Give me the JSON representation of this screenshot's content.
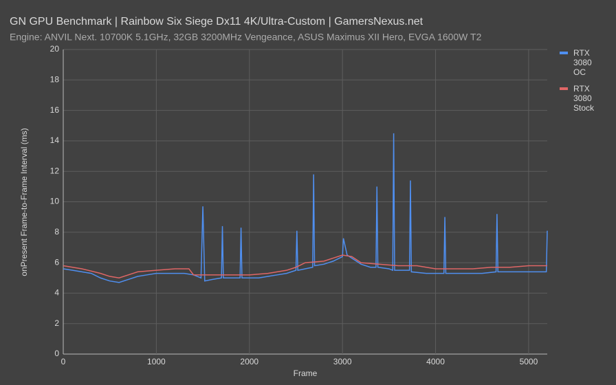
{
  "chart_data": {
    "type": "line",
    "title": "GN GPU Benchmark | Rainbow Six Siege Dx11 4K/Ultra-Custom | GamersNexus.net",
    "subtitle": "Engine: ANVIL Next. 10700K 5.1GHz, 32GB 3200MHz Vengeance, ASUS Maximus XII Hero, EVGA 1600W T2",
    "x_label": "Frame",
    "y_label": "onPresent Frame-to-Frame Interval (ms)",
    "xlim": [
      0,
      5200
    ],
    "xticks": [
      0,
      1000,
      2000,
      3000,
      4000,
      5000
    ],
    "ylim": [
      0,
      20
    ],
    "yticks": [
      0,
      2,
      4,
      6,
      8,
      10,
      12,
      14,
      16,
      18,
      20
    ],
    "grid": true,
    "legend": "right",
    "series": [
      {
        "name": "RTX 3080 OC",
        "color": "#4f8ff0",
        "x": [
          0,
          100,
          200,
          300,
          400,
          500,
          600,
          700,
          800,
          900,
          1000,
          1100,
          1200,
          1300,
          1400,
          1480,
          1500,
          1520,
          1600,
          1700,
          1710,
          1720,
          1800,
          1900,
          1910,
          1920,
          2000,
          2100,
          2200,
          2300,
          2400,
          2500,
          2510,
          2520,
          2600,
          2680,
          2690,
          2700,
          2800,
          2900,
          3000,
          3010,
          3050,
          3100,
          3200,
          3300,
          3360,
          3370,
          3380,
          3500,
          3540,
          3550,
          3560,
          3700,
          3720,
          3730,
          3740,
          3900,
          4000,
          4090,
          4100,
          4110,
          4300,
          4500,
          4650,
          4660,
          4670,
          4800,
          5000,
          5100,
          5190,
          5200
        ],
        "values": [
          5.6,
          5.5,
          5.4,
          5.3,
          5.0,
          4.8,
          4.7,
          4.9,
          5.1,
          5.2,
          5.3,
          5.3,
          5.3,
          5.3,
          5.2,
          5.0,
          9.7,
          4.8,
          4.9,
          5.0,
          8.4,
          5.0,
          5.0,
          5.0,
          8.3,
          5.0,
          5.0,
          5.0,
          5.1,
          5.2,
          5.3,
          5.5,
          8.1,
          5.5,
          5.6,
          5.7,
          11.8,
          5.8,
          5.9,
          6.1,
          6.4,
          7.6,
          6.5,
          6.3,
          5.9,
          5.7,
          5.7,
          11.0,
          5.7,
          5.6,
          5.5,
          14.5,
          5.5,
          5.5,
          5.5,
          11.4,
          5.4,
          5.3,
          5.3,
          5.3,
          9.0,
          5.3,
          5.3,
          5.3,
          5.4,
          9.2,
          5.4,
          5.4,
          5.4,
          5.4,
          5.4,
          8.1
        ]
      },
      {
        "name": "RTX 3080 Stock",
        "color": "#e06666",
        "x": [
          0,
          200,
          400,
          500,
          600,
          700,
          800,
          1000,
          1200,
          1350,
          1400,
          1600,
          1800,
          2000,
          2200,
          2400,
          2500,
          2600,
          2800,
          2900,
          3000,
          3100,
          3200,
          3400,
          3600,
          3800,
          4000,
          4200,
          4400,
          4600,
          4800,
          5000,
          5200
        ],
        "values": [
          5.8,
          5.6,
          5.3,
          5.1,
          5.0,
          5.2,
          5.4,
          5.5,
          5.6,
          5.6,
          5.2,
          5.2,
          5.2,
          5.2,
          5.3,
          5.5,
          5.7,
          6.0,
          6.1,
          6.3,
          6.5,
          6.4,
          6.0,
          5.9,
          5.8,
          5.8,
          5.6,
          5.6,
          5.6,
          5.7,
          5.7,
          5.8,
          5.8
        ]
      }
    ]
  }
}
